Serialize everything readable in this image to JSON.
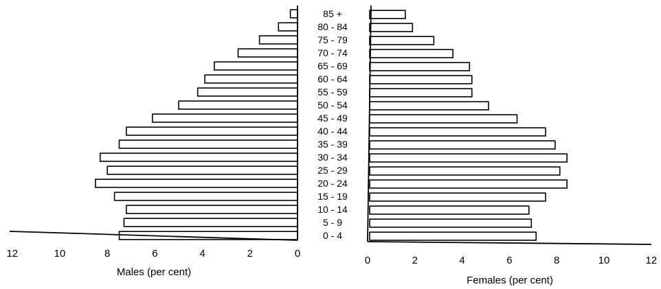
{
  "chart_data": {
    "type": "bar",
    "orientation": "horizontal",
    "layout": "population-pyramid",
    "categories": [
      "0 - 4",
      "5 - 9",
      "10 - 14",
      "15 - 19",
      "20 - 24",
      "25 - 29",
      "30 - 34",
      "35 - 39",
      "40 - 44",
      "45 - 49",
      "50 - 54",
      "55 - 59",
      "60 - 64",
      "65 - 69",
      "70 - 74",
      "75 - 79",
      "80 - 84",
      "85 +"
    ],
    "series": [
      {
        "name": "Males",
        "side": "left",
        "values": [
          7.5,
          7.3,
          7.2,
          7.7,
          8.5,
          8.0,
          8.3,
          7.5,
          7.2,
          6.1,
          5.0,
          4.2,
          3.9,
          3.5,
          2.5,
          1.6,
          0.8,
          0.3
        ]
      },
      {
        "name": "Females",
        "side": "right",
        "values": [
          7.0,
          6.8,
          6.7,
          7.4,
          8.3,
          8.0,
          8.3,
          7.8,
          7.4,
          6.2,
          5.0,
          4.3,
          4.3,
          4.2,
          3.5,
          2.7,
          1.8,
          1.5
        ]
      }
    ],
    "left_axis": {
      "title": "Males (per cent)",
      "ticks": [
        "12",
        "10",
        "8",
        "6",
        "4",
        "2",
        "0"
      ],
      "range": [
        0,
        12
      ],
      "reversed": true
    },
    "right_axis": {
      "title": "Females (per cent)",
      "ticks": [
        "0",
        "2",
        "4",
        "6",
        "8",
        "10",
        "12"
      ],
      "range": [
        0,
        12
      ]
    },
    "grid": false,
    "legend": "none"
  }
}
